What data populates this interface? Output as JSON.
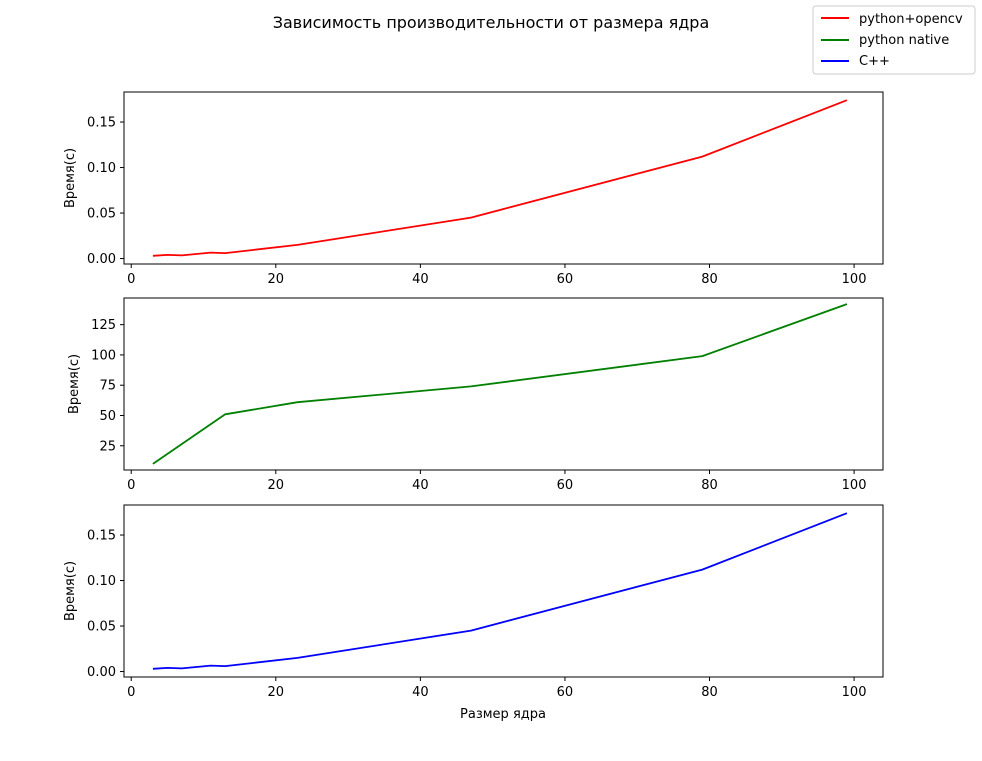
{
  "figure": {
    "title": "Зависимость производительности от размера ядра",
    "legend": {
      "placement": "top-right",
      "entries": [
        {
          "label": "python+opencv",
          "color": "#ff0000"
        },
        {
          "label": "python native",
          "color": "#008000"
        },
        {
          "label": "C++",
          "color": "#0000ff"
        }
      ]
    }
  },
  "chart_data": [
    {
      "type": "line",
      "ylabel": "Время(с)",
      "xlabel": "",
      "xlim": [
        -1,
        104
      ],
      "ylim": [
        -0.006,
        0.183
      ],
      "xticks": [
        0,
        20,
        40,
        60,
        80,
        100
      ],
      "yticks": [
        0.0,
        0.05,
        0.1,
        0.15
      ],
      "ytick_labels": [
        "0.00",
        "0.05",
        "0.10",
        "0.15"
      ],
      "grid": false,
      "series": [
        {
          "name": "python+opencv",
          "color": "#ff0000",
          "x": [
            3,
            5,
            7,
            9,
            11,
            13,
            23,
            47,
            79,
            99
          ],
          "y": [
            0.003,
            0.004,
            0.0035,
            0.005,
            0.0065,
            0.006,
            0.015,
            0.045,
            0.112,
            0.174
          ]
        }
      ]
    },
    {
      "type": "line",
      "ylabel": "Время(с)",
      "xlabel": "",
      "xlim": [
        -1,
        104
      ],
      "ylim": [
        5,
        147
      ],
      "xticks": [
        0,
        20,
        40,
        60,
        80,
        100
      ],
      "yticks": [
        25,
        50,
        75,
        100,
        125
      ],
      "ytick_labels": [
        "25",
        "50",
        "75",
        "100",
        "125"
      ],
      "grid": false,
      "series": [
        {
          "name": "python native",
          "color": "#008000",
          "x": [
            3,
            13,
            23,
            47,
            79,
            99
          ],
          "y": [
            10,
            51,
            61,
            74,
            99,
            142
          ]
        }
      ]
    },
    {
      "type": "line",
      "ylabel": "Время(с)",
      "xlabel": "Размер ядра",
      "xlim": [
        -1,
        104
      ],
      "ylim": [
        -0.006,
        0.183
      ],
      "xticks": [
        0,
        20,
        40,
        60,
        80,
        100
      ],
      "yticks": [
        0.0,
        0.05,
        0.1,
        0.15
      ],
      "ytick_labels": [
        "0.00",
        "0.05",
        "0.10",
        "0.15"
      ],
      "grid": false,
      "series": [
        {
          "name": "C++",
          "color": "#0000ff",
          "x": [
            3,
            5,
            7,
            9,
            11,
            13,
            23,
            47,
            79,
            99
          ],
          "y": [
            0.003,
            0.004,
            0.0035,
            0.005,
            0.0065,
            0.006,
            0.015,
            0.045,
            0.112,
            0.174
          ]
        }
      ]
    }
  ]
}
